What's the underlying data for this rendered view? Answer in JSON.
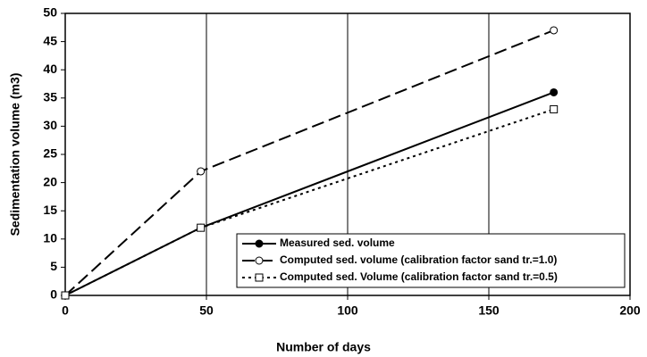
{
  "chart_data": {
    "type": "line",
    "xlabel": "Number of days",
    "ylabel": "Sedimentation volume (m3)",
    "x": [
      0,
      48,
      173
    ],
    "series": [
      {
        "name": "Measured sed. volume",
        "color": "#000000",
        "style": "solid",
        "marker": "filled-circle",
        "values": [
          0,
          12,
          36
        ]
      },
      {
        "name": "Computed sed. volume (calibration factor sand tr.=1.0)",
        "color": "#000000",
        "style": "dashed",
        "marker": "open-circle",
        "values": [
          0,
          22,
          47
        ]
      },
      {
        "name": "Computed sed. Volume (calibration factor sand tr.=0.5)",
        "color": "#000000",
        "style": "dotted",
        "marker": "open-square",
        "values": [
          0,
          12,
          33
        ]
      }
    ],
    "xlim": [
      0,
      200
    ],
    "xticks": [
      0,
      50,
      100,
      150,
      200
    ],
    "ylim": [
      0,
      50
    ],
    "yticks": [
      0,
      5,
      10,
      15,
      20,
      25,
      30,
      35,
      40,
      45,
      50
    ],
    "grid": "x",
    "legend": "lower right"
  }
}
